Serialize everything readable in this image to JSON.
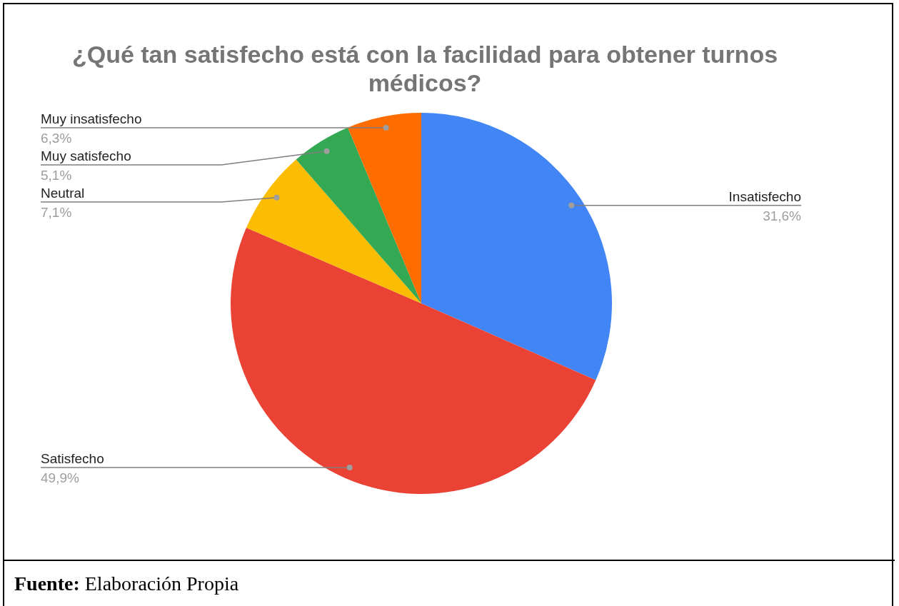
{
  "chart_data": {
    "type": "pie",
    "title": "¿Qué tan satisfecho está con la facilidad para obtener turnos médicos?",
    "categories": [
      "Insatisfecho",
      "Satisfecho",
      "Neutral",
      "Muy satisfecho",
      "Muy insatisfecho"
    ],
    "values": [
      31.6,
      49.9,
      7.1,
      5.1,
      6.3
    ],
    "value_labels": [
      "31,6%",
      "49,9%",
      "7,1%",
      "5,1%",
      "6,3%"
    ],
    "colors": [
      "#4285f4",
      "#ea4335",
      "#fbbc04",
      "#34a853",
      "#ff6d01"
    ],
    "legend": false,
    "annotations": [
      "Fuente: Elaboración Propia"
    ]
  }
}
